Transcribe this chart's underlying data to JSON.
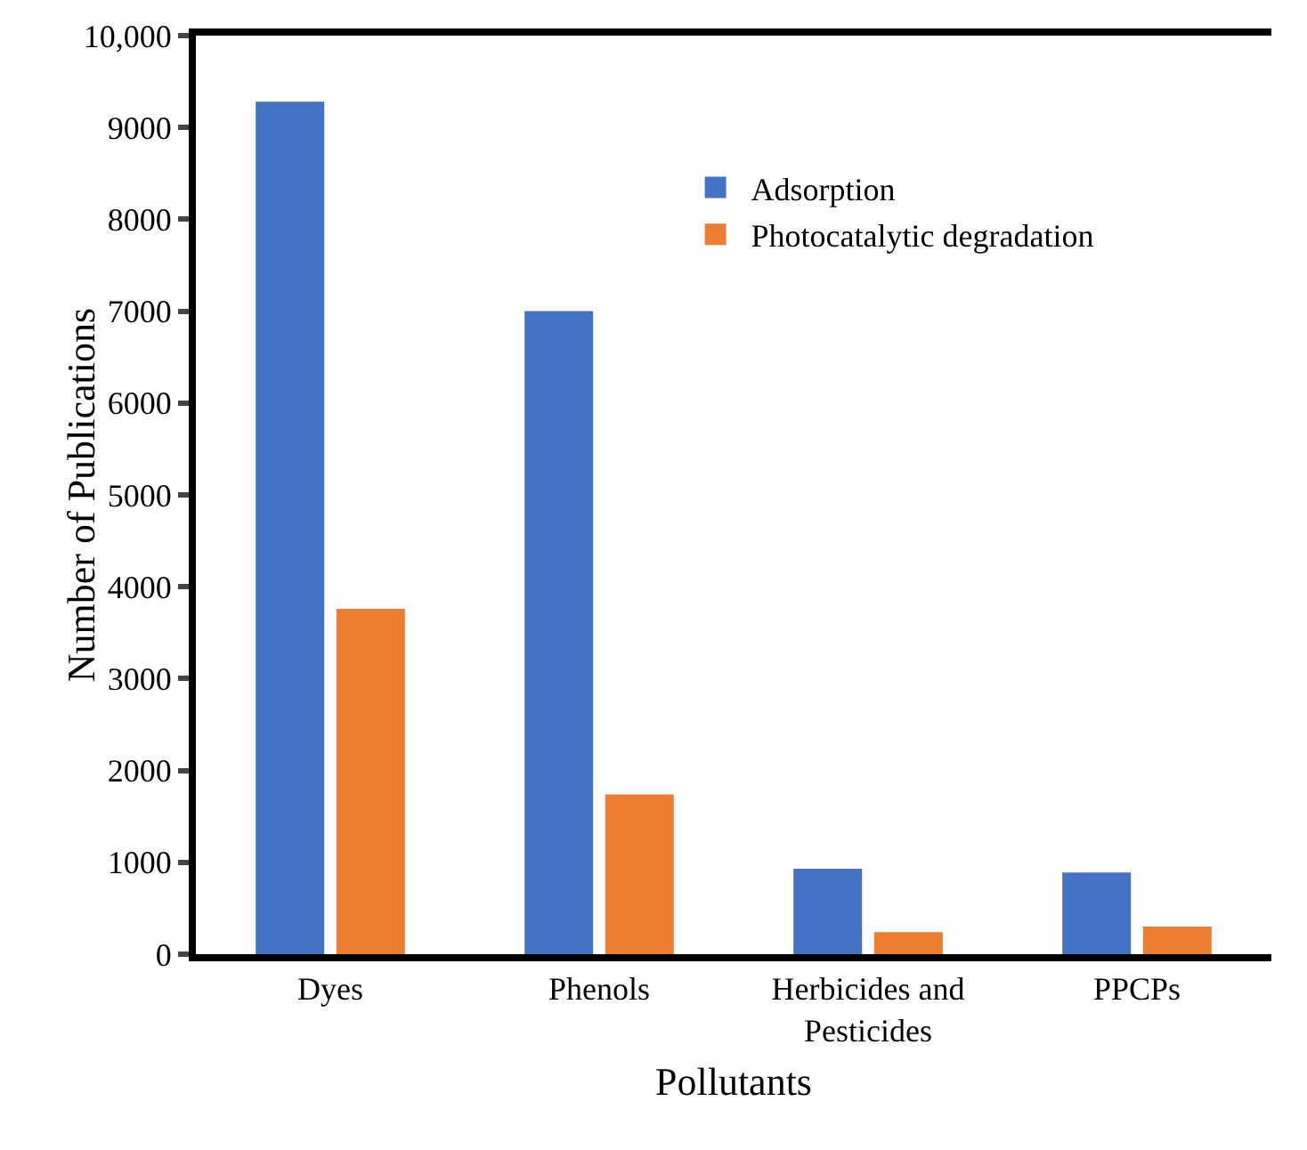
{
  "chart_data": {
    "type": "bar",
    "xlabel": "Pollutants",
    "ylabel": "Number of Publications",
    "categories": [
      "Dyes",
      "Phenols",
      "Herbicides and\nPesticides",
      "PPCPs"
    ],
    "series": [
      {
        "name": "Adsorption",
        "color": "#4472c4",
        "values": [
          9280,
          7000,
          930,
          890
        ]
      },
      {
        "name": "Photocatalytic degradation",
        "color": "#ed7d31",
        "values": [
          3760,
          1740,
          240,
          300
        ]
      }
    ],
    "ylim": [
      0,
      10000
    ],
    "yticks": [
      0,
      1000,
      2000,
      3000,
      4000,
      5000,
      6000,
      7000,
      8000,
      9000,
      {
        "value": 10000,
        "label": "10,000"
      }
    ],
    "grid": false,
    "legend": "top right"
  }
}
